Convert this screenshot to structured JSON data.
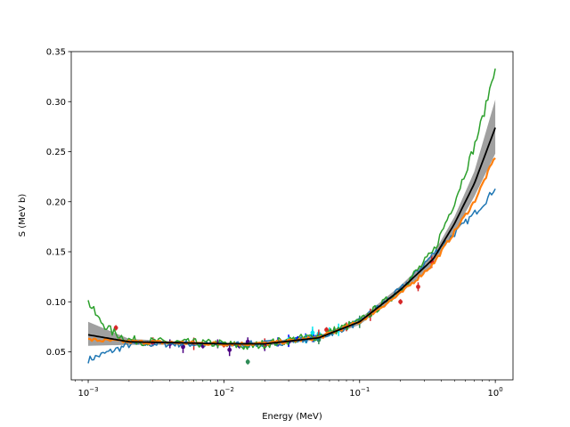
{
  "chart_data": {
    "type": "line",
    "title": "",
    "xlabel": "Energy (MeV)",
    "ylabel": "S (MeV b)",
    "xscale": "log",
    "xlim": [
      0.00075,
      1.35
    ],
    "ylim": [
      0.022,
      0.35
    ],
    "grid": false,
    "legend": "none",
    "x_ticks": [
      {
        "value": 0.001,
        "base": "10",
        "exp": "−3"
      },
      {
        "value": 0.01,
        "base": "10",
        "exp": "−2"
      },
      {
        "value": 0.1,
        "base": "10",
        "exp": "−1"
      },
      {
        "value": 1,
        "base": "10",
        "exp": "0"
      }
    ],
    "y_ticks": [
      {
        "value": 0.05,
        "label": "0.05"
      },
      {
        "value": 0.1,
        "label": "0.10"
      },
      {
        "value": 0.15,
        "label": "0.15"
      },
      {
        "value": 0.2,
        "label": "0.20"
      },
      {
        "value": 0.25,
        "label": "0.25"
      },
      {
        "value": 0.3,
        "label": "0.30"
      },
      {
        "value": 0.35,
        "label": "0.35"
      }
    ],
    "band": {
      "color": "#a0a0a0",
      "x": [
        0.001,
        0.002,
        0.005,
        0.01,
        0.02,
        0.05,
        0.1,
        0.2,
        0.35,
        0.5,
        0.7,
        1.0
      ],
      "lower": [
        0.056,
        0.057,
        0.057,
        0.056,
        0.056,
        0.062,
        0.077,
        0.108,
        0.138,
        0.17,
        0.205,
        0.248
      ],
      "upper": [
        0.08,
        0.063,
        0.06,
        0.059,
        0.06,
        0.066,
        0.083,
        0.116,
        0.148,
        0.185,
        0.23,
        0.302
      ]
    },
    "series": [
      {
        "color": "#1f77b4",
        "noise": 0.0035,
        "x": [
          0.001,
          0.0015,
          0.002,
          0.003,
          0.005,
          0.01,
          0.02,
          0.05,
          0.1,
          0.2,
          0.35,
          0.5,
          0.7,
          0.9,
          1.0
        ],
        "y": [
          0.042,
          0.051,
          0.057,
          0.058,
          0.058,
          0.057,
          0.058,
          0.064,
          0.08,
          0.112,
          0.148,
          0.168,
          0.188,
          0.205,
          0.215
        ]
      },
      {
        "color": "#2ca02c",
        "noise": 0.0045,
        "x": [
          0.001,
          0.0012,
          0.0015,
          0.002,
          0.003,
          0.005,
          0.01,
          0.015,
          0.02,
          0.05,
          0.1,
          0.2,
          0.35,
          0.5,
          0.7,
          0.85,
          1.0
        ],
        "y": [
          0.1,
          0.082,
          0.07,
          0.062,
          0.06,
          0.059,
          0.058,
          0.055,
          0.058,
          0.066,
          0.08,
          0.112,
          0.15,
          0.2,
          0.255,
          0.295,
          0.336
        ]
      },
      {
        "color": "#ff7f0e",
        "noise": 0.002,
        "width": 2.2,
        "x": [
          0.001,
          0.002,
          0.005,
          0.01,
          0.02,
          0.05,
          0.1,
          0.2,
          0.35,
          0.5,
          0.7,
          1.0
        ],
        "y": [
          0.062,
          0.06,
          0.059,
          0.058,
          0.058,
          0.064,
          0.08,
          0.108,
          0.138,
          0.17,
          0.2,
          0.245
        ]
      },
      {
        "color": "#000000",
        "noise": 0,
        "width": 1.8,
        "x": [
          0.001,
          0.002,
          0.005,
          0.01,
          0.02,
          0.05,
          0.1,
          0.2,
          0.35,
          0.5,
          0.7,
          1.0
        ],
        "y": [
          0.067,
          0.06,
          0.059,
          0.058,
          0.058,
          0.064,
          0.08,
          0.112,
          0.143,
          0.178,
          0.218,
          0.274
        ]
      }
    ],
    "points": [
      {
        "color": "#4b0082",
        "x": [
          0.003,
          0.004,
          0.005,
          0.007,
          0.009,
          0.011,
          0.013,
          0.015,
          0.02,
          0.025,
          0.03
        ],
        "y": [
          0.059,
          0.058,
          0.055,
          0.056,
          0.058,
          0.052,
          0.056,
          0.06,
          0.057,
          0.058,
          0.06
        ]
      },
      {
        "color": "#0000ff",
        "x": [
          0.02,
          0.025,
          0.03,
          0.035,
          0.04,
          0.045
        ],
        "y": [
          0.058,
          0.06,
          0.061,
          0.063,
          0.064,
          0.066
        ]
      },
      {
        "color": "#00e5ee",
        "x": [
          0.03,
          0.04,
          0.045,
          0.05,
          0.06,
          0.07,
          0.08
        ],
        "y": [
          0.062,
          0.063,
          0.069,
          0.068,
          0.07,
          0.072,
          0.074
        ]
      },
      {
        "color": "#d62728",
        "x": [
          0.0016,
          0.003,
          0.006,
          0.01,
          0.02,
          0.05,
          0.057,
          0.08,
          0.12,
          0.2,
          0.27,
          0.34
        ],
        "y": [
          0.074,
          0.06,
          0.058,
          0.057,
          0.059,
          0.066,
          0.072,
          0.075,
          0.087,
          0.1,
          0.115,
          0.14
        ]
      },
      {
        "color": "#2e8b57",
        "x": [
          0.015,
          0.05,
          0.1,
          0.2
        ],
        "y": [
          0.04,
          0.062,
          0.08,
          0.112
        ]
      }
    ]
  }
}
